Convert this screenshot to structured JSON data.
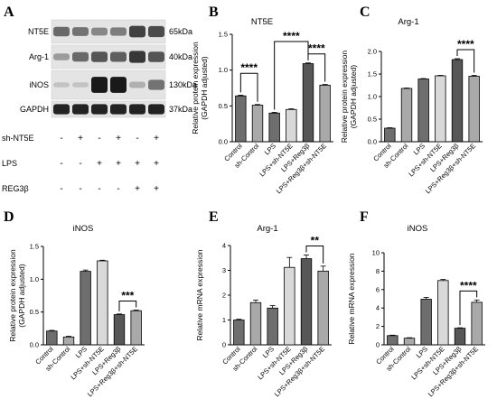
{
  "blot": {
    "letter": "A",
    "proteins": [
      {
        "name": "NT5E",
        "size": "65kDa",
        "bands": [
          0.55,
          0.5,
          0.4,
          0.45,
          0.75,
          0.7
        ]
      },
      {
        "name": "Arg-1",
        "size": "40kDa",
        "bands": [
          0.3,
          0.55,
          0.65,
          0.6,
          0.8,
          0.65
        ]
      },
      {
        "name": "iNOS",
        "size": "130kDa",
        "bands": [
          0.1,
          0.1,
          0.95,
          0.95,
          0.2,
          0.5
        ]
      },
      {
        "name": "GAPDH",
        "size": "37kDa",
        "bands": [
          0.9,
          0.9,
          0.9,
          0.9,
          0.9,
          0.9
        ]
      }
    ],
    "conditions": [
      {
        "name": "sh-NT5E",
        "signs": [
          "-",
          "+",
          "-",
          "+",
          "-",
          "+"
        ]
      },
      {
        "name": "LPS",
        "signs": [
          "-",
          "-",
          "+",
          "+",
          "+",
          "+"
        ]
      },
      {
        "name": "REG3β",
        "signs": [
          "-",
          "-",
          "-",
          "-",
          "+",
          "+"
        ]
      }
    ]
  },
  "chart_data": [
    {
      "letter": "B",
      "type": "bar",
      "title": "NT5E",
      "ylabel": [
        "Relative protein expression",
        "(GAPDH adjusted)"
      ],
      "ylim": [
        0,
        1.5
      ],
      "yticks": [
        "0.0",
        "0.5",
        "1.0",
        "1.5"
      ],
      "categories": [
        "Control",
        "sh-Control",
        "LPS",
        "LPS+sh-NT5E",
        "LPS+Reg3β",
        "LPS+Reg3β+sh-NT5E"
      ],
      "values": [
        0.64,
        0.51,
        0.4,
        0.45,
        1.09,
        0.79
      ],
      "errors": [
        0.01,
        0.01,
        0.01,
        0.01,
        0.01,
        0.01
      ],
      "sig": [
        {
          "from": 0,
          "to": 1,
          "label": "****"
        },
        {
          "from": 2,
          "to": 4,
          "label": "****"
        },
        {
          "from": 4,
          "to": 5,
          "label": "****"
        }
      ]
    },
    {
      "letter": "C",
      "type": "bar",
      "title": "Arg-1",
      "ylabel": [
        "Relative protein expression",
        "(GAPDH adjusted)"
      ],
      "ylim": [
        0,
        2.0
      ],
      "yticks": [
        "0.0",
        "0.5",
        "1.0",
        "1.5",
        "2.0"
      ],
      "categories": [
        "Control",
        "sh-Control",
        "LPS",
        "LPS+sh-NT5E",
        "LPS+Reg3β",
        "LPS+Reg3β+sh-NT5E"
      ],
      "values": [
        0.3,
        1.18,
        1.39,
        1.46,
        1.82,
        1.45
      ],
      "errors": [
        0.01,
        0.01,
        0.01,
        0.01,
        0.02,
        0.02
      ],
      "sig": [
        {
          "from": 4,
          "to": 5,
          "label": "****"
        }
      ]
    },
    {
      "letter": "D",
      "type": "bar",
      "title": "iNOS",
      "ylabel": [
        "Relative protein expression",
        "(GAPDH adjusted)"
      ],
      "ylim": [
        0,
        1.5
      ],
      "yticks": [
        "0.0",
        "0.5",
        "1.0",
        "1.5"
      ],
      "categories": [
        "Control",
        "sh-Control",
        "LPS",
        "LPS+sh-NT5E",
        "LPS+Reg3β",
        "LPS+Reg3β+sh-NT5E"
      ],
      "values": [
        0.21,
        0.12,
        1.12,
        1.28,
        0.46,
        0.52
      ],
      "errors": [
        0.01,
        0.01,
        0.02,
        0.01,
        0.01,
        0.01
      ],
      "sig": [
        {
          "from": 4,
          "to": 5,
          "label": "***"
        }
      ]
    },
    {
      "letter": "E",
      "type": "bar",
      "title": "Arg-1",
      "ylabel": [
        "Relative mRNA expression"
      ],
      "ylim": [
        0,
        4
      ],
      "yticks": [
        "0",
        "1",
        "2",
        "3",
        "4"
      ],
      "categories": [
        "Control",
        "sh-Control",
        "LPS",
        "LPS+sh-NT5E",
        "LPS+Reg3β",
        "LPS+Reg3β+sh-NT5E"
      ],
      "values": [
        1.0,
        1.7,
        1.48,
        3.12,
        3.47,
        2.97
      ],
      "errors": [
        0.03,
        0.1,
        0.1,
        0.4,
        0.15,
        0.2
      ],
      "sig": [
        {
          "from": 4,
          "to": 5,
          "label": "**"
        }
      ]
    },
    {
      "letter": "F",
      "type": "bar",
      "title": "iNOS",
      "ylabel": [
        "Relative mRNA expression"
      ],
      "ylim": [
        0,
        10
      ],
      "yticks": [
        "0",
        "2",
        "4",
        "6",
        "8",
        "10"
      ],
      "categories": [
        "Control",
        "sh-Control",
        "LPS",
        "LPS+sh-NT5E",
        "LPS+Reg3β",
        "LPS+Reg3β+sh-NT5E"
      ],
      "values": [
        1.0,
        0.72,
        4.95,
        6.98,
        1.8,
        4.62
      ],
      "errors": [
        0.05,
        0.05,
        0.2,
        0.12,
        0.05,
        0.25
      ],
      "sig": [
        {
          "from": 4,
          "to": 5,
          "label": "****"
        }
      ]
    }
  ],
  "colors": {
    "bars": [
      "#6e6e6e",
      "#a9a9a9",
      "#6e6e6e",
      "#d9d9d9",
      "#575757",
      "#a9a9a9"
    ],
    "axis": "#000000"
  }
}
